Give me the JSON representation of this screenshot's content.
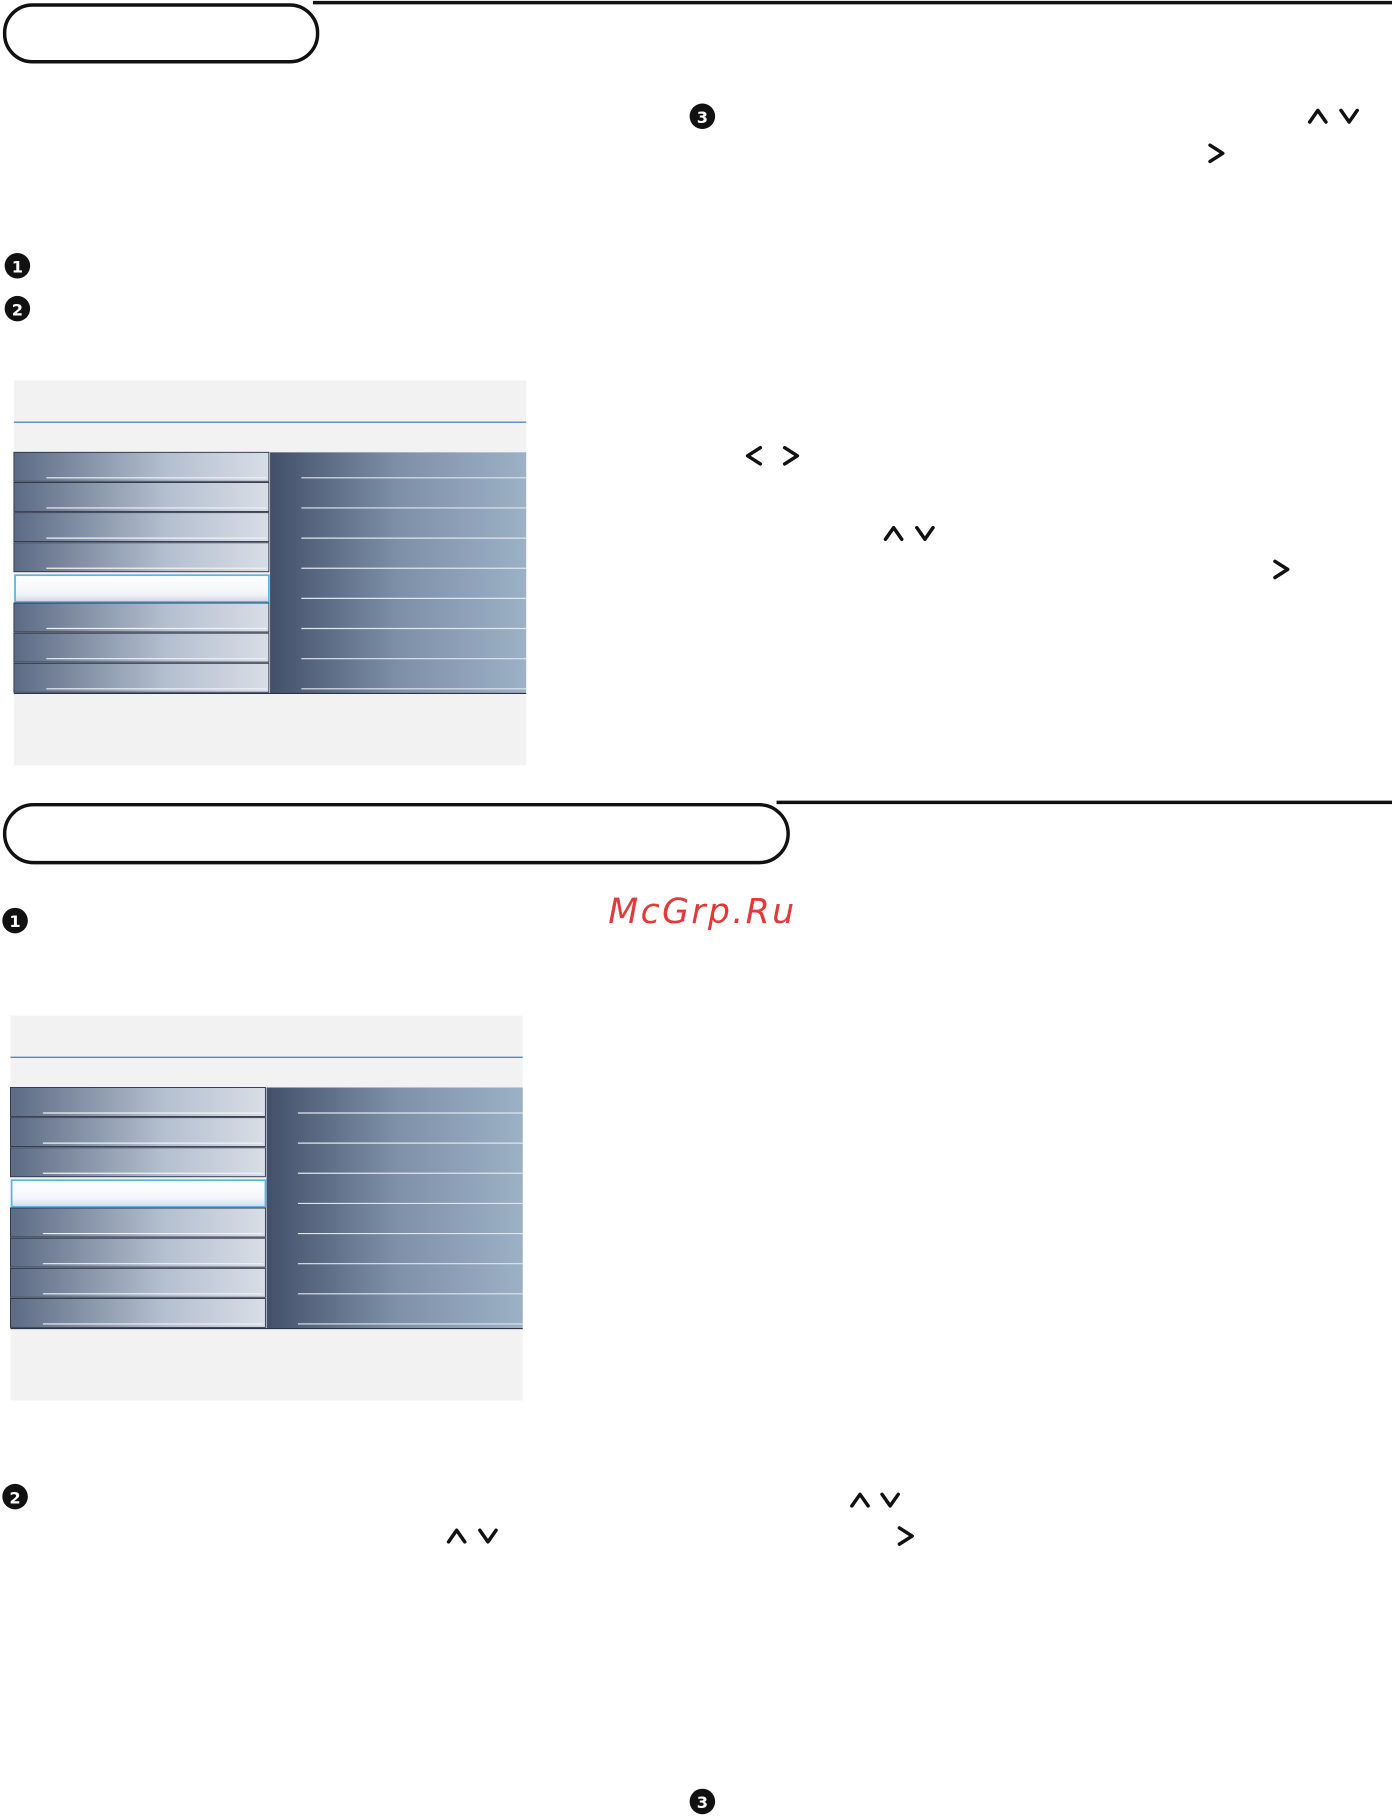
{
  "section1": {
    "steps": [
      "1",
      "2",
      "3"
    ]
  },
  "section2": {
    "steps": [
      "1",
      "2",
      "3"
    ]
  },
  "watermark": "McGrp.Ru"
}
